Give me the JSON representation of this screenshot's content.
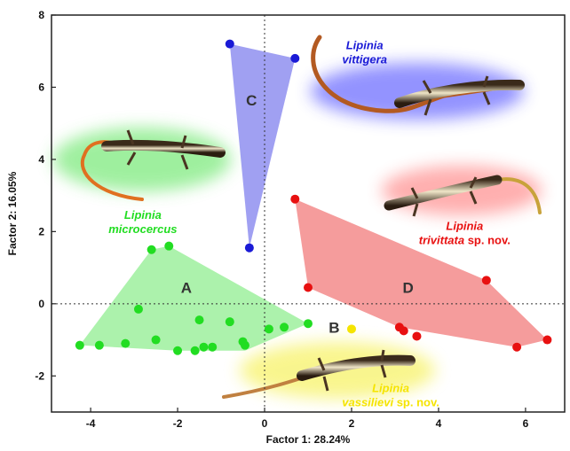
{
  "chart_data": {
    "type": "scatter",
    "xlabel": "Factor 1: 28.24%",
    "ylabel": "Factor 2: 16.05%",
    "xlim": [
      -4.9,
      6.9
    ],
    "ylim": [
      -3,
      8
    ],
    "xticks": [
      -4,
      -2,
      0,
      2,
      4,
      6
    ],
    "yticks": [
      -2,
      0,
      2,
      4,
      6,
      8
    ],
    "grid": false,
    "reference_lines": [
      {
        "axis": "x",
        "value": 0,
        "style": "dotted"
      },
      {
        "axis": "y",
        "value": 0,
        "style": "dotted"
      }
    ],
    "groups": [
      {
        "letter": "A",
        "species": "Lipinia microcercus",
        "species_suffix": "",
        "color": "#22dd22",
        "hull_color": "#90ee90",
        "label_pos": [
          -1.8,
          0.3
        ],
        "points": [
          [
            -4.25,
            -1.15
          ],
          [
            -3.8,
            -1.15
          ],
          [
            -3.2,
            -1.1
          ],
          [
            -2.9,
            -0.15
          ],
          [
            -2.6,
            1.5
          ],
          [
            -2.2,
            1.6
          ],
          [
            -2.5,
            -1.0
          ],
          [
            -2.0,
            -1.3
          ],
          [
            -1.6,
            -1.3
          ],
          [
            -1.5,
            -0.45
          ],
          [
            -1.4,
            -1.2
          ],
          [
            -1.2,
            -1.2
          ],
          [
            -0.8,
            -0.5
          ],
          [
            -0.5,
            -1.05
          ],
          [
            -0.45,
            -1.15
          ],
          [
            0.1,
            -0.7
          ],
          [
            0.45,
            -0.65
          ],
          [
            1.0,
            -0.55
          ]
        ],
        "hull": [
          [
            -4.25,
            -1.15
          ],
          [
            -2.6,
            1.5
          ],
          [
            -2.2,
            1.6
          ],
          [
            1.0,
            -0.55
          ],
          [
            -0.45,
            -1.3
          ],
          [
            -2.0,
            -1.3
          ]
        ]
      },
      {
        "letter": "B",
        "species": "Lipinia vassilievi",
        "species_suffix": "sp. nov.",
        "color": "#f5e400",
        "hull_color": "#f5e400",
        "label_pos": [
          1.6,
          -0.8
        ],
        "points": [
          [
            2.0,
            -0.7
          ]
        ],
        "hull": []
      },
      {
        "letter": "C",
        "species": "Lipinia vittigera",
        "species_suffix": "",
        "color": "#1a1ad6",
        "hull_color": "#8080ee",
        "label_pos": [
          -0.3,
          5.5
        ],
        "points": [
          [
            -0.8,
            7.2
          ],
          [
            0.7,
            6.8
          ],
          [
            -0.35,
            1.55
          ]
        ],
        "hull": [
          [
            -0.8,
            7.2
          ],
          [
            0.7,
            6.8
          ],
          [
            -0.35,
            1.55
          ]
        ]
      },
      {
        "letter": "D",
        "species": "Lipinia trivittata",
        "species_suffix": "sp. nov.",
        "color": "#e81010",
        "hull_color": "#f27b7b",
        "label_pos": [
          3.3,
          0.3
        ],
        "points": [
          [
            0.7,
            2.9
          ],
          [
            1.0,
            0.45
          ],
          [
            3.1,
            -0.65
          ],
          [
            3.2,
            -0.75
          ],
          [
            3.5,
            -0.9
          ],
          [
            5.1,
            0.65
          ],
          [
            5.8,
            -1.2
          ],
          [
            6.5,
            -1.0
          ]
        ],
        "hull": [
          [
            0.7,
            2.9
          ],
          [
            5.1,
            0.65
          ],
          [
            6.5,
            -1.0
          ],
          [
            5.8,
            -1.2
          ],
          [
            3.1,
            -0.65
          ],
          [
            1.0,
            0.45
          ]
        ]
      }
    ]
  }
}
